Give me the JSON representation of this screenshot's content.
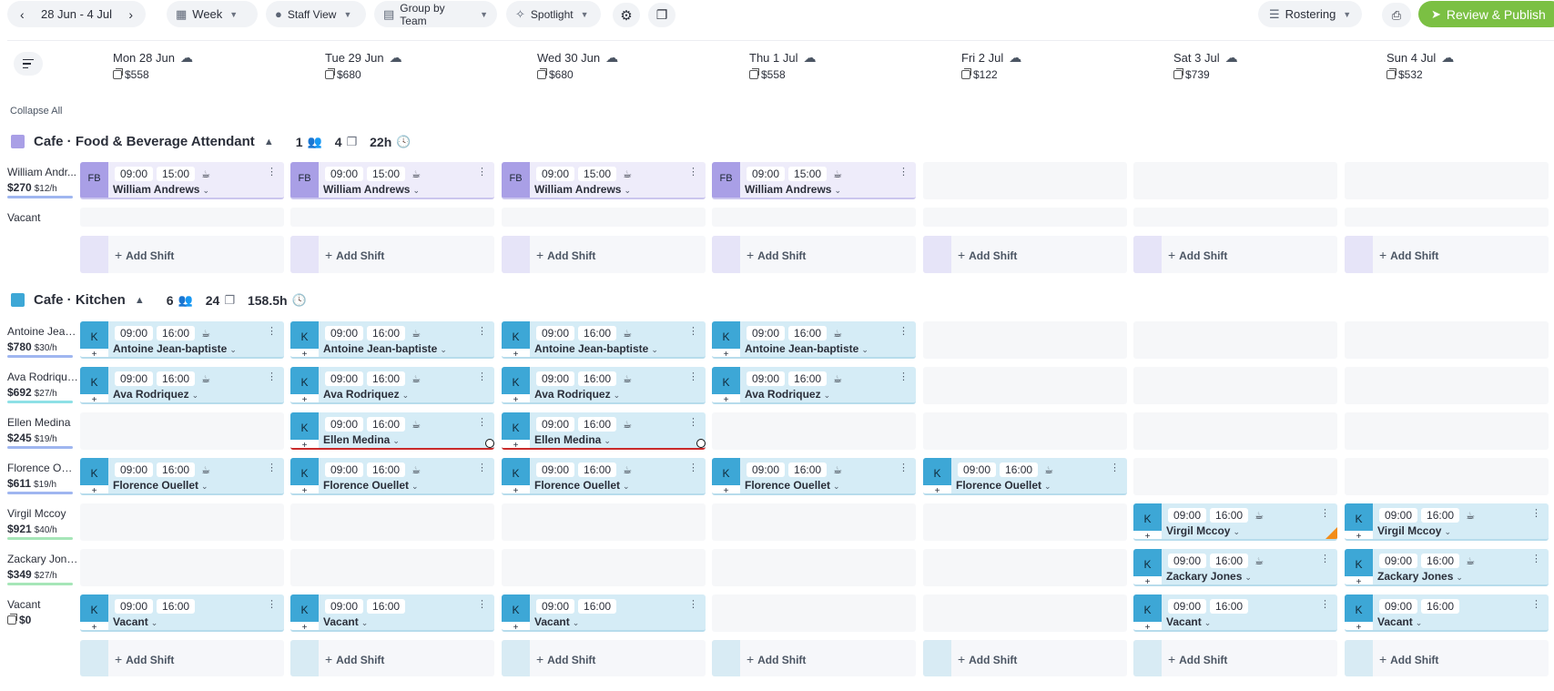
{
  "toolbar": {
    "date_range": "28 Jun - 4 Jul",
    "prev_arrow": "‹",
    "next_arrow": "›",
    "week": "Week",
    "staff_view": "Staff View",
    "group_by": "Group by Team",
    "spotlight": "Spotlight",
    "rostering": "Rostering",
    "publish": "Review & Publish"
  },
  "days": [
    {
      "label": "Mon 28 Jun",
      "cost": "$558"
    },
    {
      "label": "Tue 29 Jun",
      "cost": "$680"
    },
    {
      "label": "Wed 30 Jun",
      "cost": "$680"
    },
    {
      "label": "Thu 1 Jul",
      "cost": "$558"
    },
    {
      "label": "Fri 2 Jul",
      "cost": "$122"
    },
    {
      "label": "Sat 3 Jul",
      "cost": "$739"
    },
    {
      "label": "Sun 4 Jul",
      "cost": "$532"
    }
  ],
  "collapse_all": "Collapse All",
  "add_shift_label": "Add Shift",
  "teams": [
    {
      "name": "Cafe · Food & Beverage Attendant",
      "color": "#a99fe6",
      "people": "1",
      "shifts": "4",
      "hours": "22h",
      "tag": "FB",
      "rows": [
        {
          "name": "William Andr...",
          "cost": "$270",
          "rate": "$12/h",
          "bar": "#9fb6f0",
          "shifts": [
            {
              "day": 0,
              "start": "09:00",
              "end": "15:00",
              "who": "William Andrews"
            },
            {
              "day": 1,
              "start": "09:00",
              "end": "15:00",
              "who": "William Andrews"
            },
            {
              "day": 2,
              "start": "09:00",
              "end": "15:00",
              "who": "William Andrews"
            },
            {
              "day": 3,
              "start": "09:00",
              "end": "15:00",
              "who": "William Andrews"
            }
          ]
        },
        {
          "name": "Vacant",
          "cost": "",
          "rate": "",
          "bar": "",
          "thin": true,
          "shifts": []
        }
      ]
    },
    {
      "name": "Cafe · Kitchen",
      "color": "#3da7d6",
      "people": "6",
      "shifts": "24",
      "hours": "158.5h",
      "tag": "K",
      "rows": [
        {
          "name": "Antoine Jean...",
          "cost": "$780",
          "rate": "$30/h",
          "bar": "#9fb6f0",
          "shifts": [
            {
              "day": 0,
              "start": "09:00",
              "end": "16:00",
              "who": "Antoine Jean-baptiste"
            },
            {
              "day": 1,
              "start": "09:00",
              "end": "16:00",
              "who": "Antoine Jean-baptiste"
            },
            {
              "day": 2,
              "start": "09:00",
              "end": "16:00",
              "who": "Antoine Jean-baptiste"
            },
            {
              "day": 3,
              "start": "09:00",
              "end": "16:00",
              "who": "Antoine Jean-baptiste"
            }
          ]
        },
        {
          "name": "Ava Rodriquez",
          "cost": "$692",
          "rate": "$27/h",
          "bar": "#8ee0e6",
          "shifts": [
            {
              "day": 0,
              "start": "09:00",
              "end": "16:00",
              "who": "Ava Rodriquez"
            },
            {
              "day": 1,
              "start": "09:00",
              "end": "16:00",
              "who": "Ava Rodriquez"
            },
            {
              "day": 2,
              "start": "09:00",
              "end": "16:00",
              "who": "Ava Rodriquez"
            },
            {
              "day": 3,
              "start": "09:00",
              "end": "16:00",
              "who": "Ava Rodriquez"
            }
          ]
        },
        {
          "name": "Ellen Medina",
          "cost": "$245",
          "rate": "$19/h",
          "bar": "#9fb6f0",
          "shifts": [
            {
              "day": 1,
              "start": "09:00",
              "end": "16:00",
              "who": "Ellen Medina",
              "alert": true
            },
            {
              "day": 2,
              "start": "09:00",
              "end": "16:00",
              "who": "Ellen Medina",
              "alert": true
            }
          ]
        },
        {
          "name": "Florence Oue...",
          "cost": "$611",
          "rate": "$19/h",
          "bar": "#9fb6f0",
          "shifts": [
            {
              "day": 0,
              "start": "09:00",
              "end": "16:00",
              "who": "Florence Ouellet"
            },
            {
              "day": 1,
              "start": "09:00",
              "end": "16:00",
              "who": "Florence Ouellet"
            },
            {
              "day": 2,
              "start": "09:00",
              "end": "16:00",
              "who": "Florence Ouellet"
            },
            {
              "day": 3,
              "start": "09:00",
              "end": "16:00",
              "who": "Florence Ouellet"
            },
            {
              "day": 4,
              "start": "09:00",
              "end": "16:00",
              "who": "Florence Ouellet"
            }
          ]
        },
        {
          "name": "Virgil Mccoy",
          "cost": "$921",
          "rate": "$40/h",
          "bar": "#a6e6b8",
          "shifts": [
            {
              "day": 5,
              "start": "09:00",
              "end": "16:00",
              "who": "Virgil Mccoy",
              "corner": true
            },
            {
              "day": 6,
              "start": "09:00",
              "end": "16:00",
              "who": "Virgil Mccoy"
            }
          ]
        },
        {
          "name": "Zackary Jones",
          "cost": "$349",
          "rate": "$27/h",
          "bar": "#a6e6b8",
          "shifts": [
            {
              "day": 5,
              "start": "09:00",
              "end": "16:00",
              "who": "Zackary Jones"
            },
            {
              "day": 6,
              "start": "09:00",
              "end": "16:00",
              "who": "Zackary Jones"
            }
          ]
        },
        {
          "name": "Vacant",
          "cost": "$0",
          "rate": "",
          "bar": "",
          "vacant_cost": true,
          "shifts": [
            {
              "day": 0,
              "start": "09:00",
              "end": "16:00",
              "who": "Vacant",
              "nocup": true
            },
            {
              "day": 1,
              "start": "09:00",
              "end": "16:00",
              "who": "Vacant",
              "nocup": true
            },
            {
              "day": 2,
              "start": "09:00",
              "end": "16:00",
              "who": "Vacant",
              "nocup": true
            },
            {
              "day": 5,
              "start": "09:00",
              "end": "16:00",
              "who": "Vacant",
              "nocup": true
            },
            {
              "day": 6,
              "start": "09:00",
              "end": "16:00",
              "who": "Vacant",
              "nocup": true
            }
          ]
        }
      ]
    }
  ]
}
